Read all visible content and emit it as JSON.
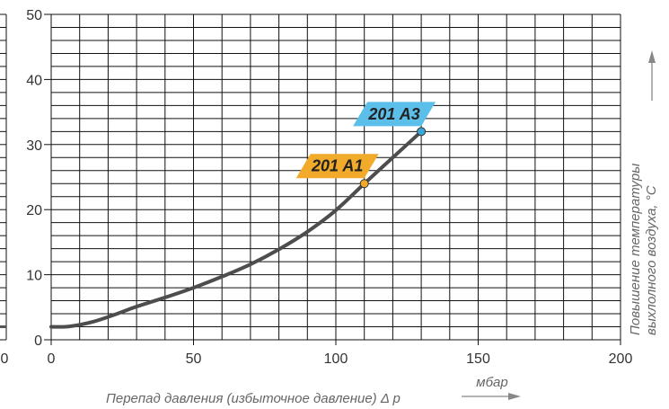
{
  "chart_data": {
    "type": "line",
    "xlabel": "Перепад давления (избыточное давление) Δ p",
    "xunit": "мбар",
    "ylabel_line1": "Повышение температуры",
    "ylabel_line2": "выхлолного воздуха, °C",
    "xlim": [
      0,
      200
    ],
    "ylim": [
      0,
      50
    ],
    "x_ticks": [
      "0",
      "50",
      "100",
      "150",
      "200"
    ],
    "y_ticks": [
      "0",
      "10",
      "20",
      "30",
      "40",
      "50"
    ],
    "left_stub_tick": "0",
    "grid": true,
    "series": [
      {
        "x": [
          0,
          5,
          10,
          15,
          20,
          25,
          30,
          40,
          50,
          60,
          70,
          80,
          90,
          100,
          110,
          120,
          130
        ],
        "y": [
          2,
          2,
          2.3,
          2.8,
          3.5,
          4.3,
          5.1,
          6.5,
          8,
          9.7,
          11.6,
          13.9,
          16.6,
          19.9,
          24,
          28,
          32
        ],
        "color": "#4d4d4d"
      }
    ],
    "annotations": [
      {
        "label": "201 A1",
        "x": 110,
        "y": 24,
        "color": "#f2aa2a",
        "point_color": "#f2aa2a"
      },
      {
        "label": "201 A3",
        "x": 130,
        "y": 32,
        "color": "#5bbfea",
        "point_color": "#3aa6d8"
      }
    ]
  }
}
